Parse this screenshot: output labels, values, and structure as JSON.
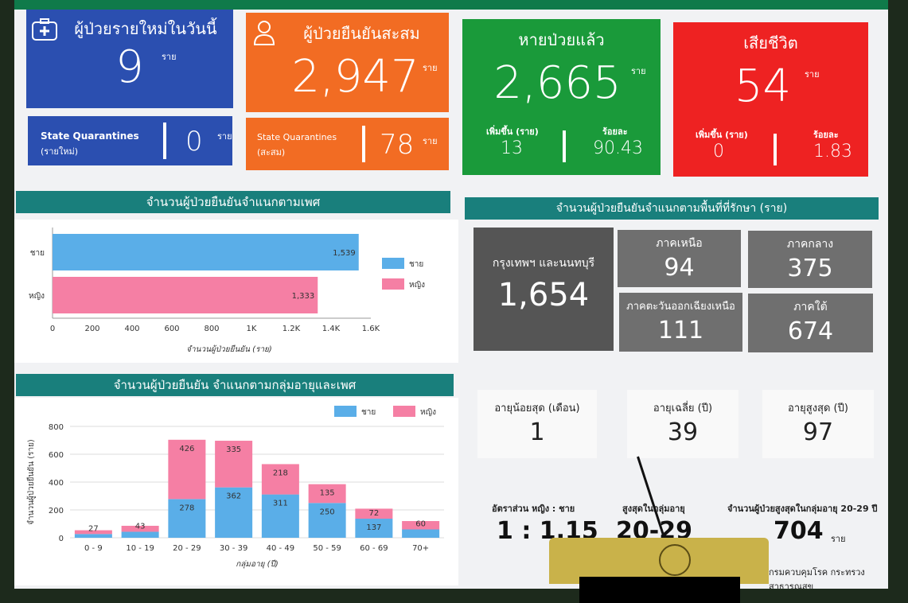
{
  "cards": {
    "new": {
      "title": "ผู้ป่วยรายใหม่ในวันนี้",
      "value": "9",
      "unit": "ราย",
      "sq_label": "State Quarantines",
      "sq_sub": "(รายใหม่)",
      "sq_value": "0",
      "sq_unit": "ราย",
      "color": "#2b4fb0"
    },
    "cumulative": {
      "title": "ผู้ป่วยยืนยันสะสม",
      "value": "2,947",
      "unit": "ราย",
      "sq_label": "State Quarantines",
      "sq_sub": "(สะสม)",
      "sq_value": "78",
      "sq_unit": "ราย",
      "color": "#f26c23"
    },
    "recovered": {
      "title": "หายป่วยแล้ว",
      "value": "2,665",
      "unit": "ราย",
      "inc_label": "เพิ่มขึ้น (ราย)",
      "inc_value": "13",
      "pct_label": "ร้อยละ",
      "pct_value": "90.43",
      "color": "#1a9a3a"
    },
    "deaths": {
      "title": "เสียชีวิต",
      "value": "54",
      "unit": "ราย",
      "inc_label": "เพิ่มขึ้น (ราย)",
      "inc_value": "0",
      "pct_label": "ร้อยละ",
      "pct_value": "1.83",
      "color": "#ee2222"
    }
  },
  "gender_section": {
    "title": "จำนวนผู้ป่วยยืนยันจำแนกตามเพศ"
  },
  "region_section": {
    "title": "จำนวนผู้ป่วยยืนยันจำแนกตามพื้นที่ที่รักษา (ราย)",
    "bkk": {
      "label": "กรุงเทพฯ และนนทบุรี",
      "value": "1,654"
    },
    "tiles": [
      {
        "label": "ภาคเหนือ",
        "value": "94"
      },
      {
        "label": "ภาคกลาง",
        "value": "375"
      },
      {
        "label": "ภาคตะวันออกเฉียงเหนือ",
        "value": "111"
      },
      {
        "label": "ภาคใต้",
        "value": "674"
      }
    ]
  },
  "age_section": {
    "title": "จำนวนผู้ป่วยยืนยัน จำแนกตามกลุ่มอายุและเพศ"
  },
  "stats": [
    {
      "label": "อายุน้อยสุด (เดือน)",
      "value": "1"
    },
    {
      "label": "อายุเฉลี่ย (ปี)",
      "value": "39"
    },
    {
      "label": "อายุสูงสุด (ปี)",
      "value": "97"
    }
  ],
  "bottom": {
    "ratio_label": "อัตราส่วน หญิง : ชาย",
    "ratio_value": "1 : 1.15",
    "peak_label": "สูงสุดในกลุ่มอายุ",
    "peak_value": "20-29",
    "count_label": "จำนวนผู้ป่วยสูงสุดในกลุ่มอายุ 20-29 ปี",
    "count_value": "704",
    "count_unit": "ราย",
    "footer": "กรมควบคุมโรค กระทรวงสาธารณสุข"
  },
  "chart_data": [
    {
      "type": "bar",
      "orientation": "horizontal",
      "categories": [
        "ชาย",
        "หญิง"
      ],
      "values": [
        1539,
        1333
      ],
      "value_labels": [
        "1,539",
        "1,333"
      ],
      "colors": [
        "#5aaee8",
        "#f57fa4"
      ],
      "xlabel": "จำนวนผู้ป่วยยืนยัน (ราย)",
      "xticks": [
        "0",
        "200",
        "400",
        "600",
        "800",
        "1K",
        "1.2K",
        "1.4K",
        "1.6K"
      ],
      "xlim": [
        0,
        1600
      ],
      "legend": [
        "ชาย",
        "หญิง"
      ],
      "legend_position": "right"
    },
    {
      "type": "bar",
      "stacked": true,
      "categories": [
        "0 - 9",
        "10 - 19",
        "20 - 29",
        "30 - 39",
        "40 - 49",
        "50 - 59",
        "60 - 69",
        "70+"
      ],
      "series": [
        {
          "name": "ชาย",
          "values": [
            27,
            43,
            278,
            362,
            311,
            250,
            137,
            60
          ],
          "color": "#5aaee8"
        },
        {
          "name": "หญิง",
          "values": [
            27,
            43,
            426,
            335,
            218,
            135,
            72,
            60
          ],
          "color": "#f57fa4"
        }
      ],
      "labels": {
        "male": [
          "",
          "",
          "278",
          "362",
          "311",
          "250",
          "137",
          ""
        ],
        "female": [
          "27",
          "43",
          "426",
          "335",
          "218",
          "135",
          "72",
          "60"
        ]
      },
      "xlabel": "กลุ่มอายุ (ปี)",
      "ylabel": "จำนวนผู้ป่วยยืนยัน (ราย)",
      "yticks": [
        "0",
        "200",
        "400",
        "600",
        "800"
      ],
      "ylim": [
        0,
        800
      ],
      "legend": [
        "ชาย",
        "หญิง"
      ],
      "legend_position": "top-right",
      "grid": true
    }
  ]
}
